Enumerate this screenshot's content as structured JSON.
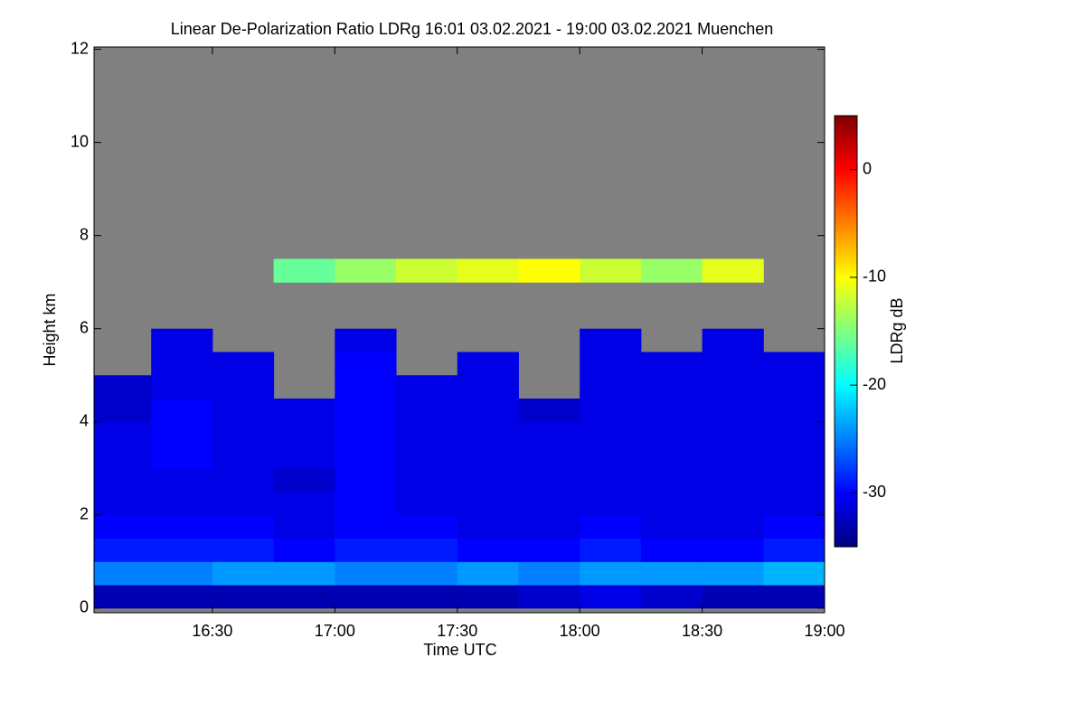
{
  "chart_data": {
    "type": "heatmap",
    "title": "Linear De-Polarization Ratio LDRg   16:01 03.02.2021 - 19:00 03.02.2021 Muenchen",
    "xlabel": "Time UTC",
    "ylabel": "Height km",
    "colorbar_label": "LDRg dB",
    "colormap": "jet",
    "missing_color": "#808080",
    "x_edges": [
      16.0167,
      16.25,
      16.5,
      16.75,
      17,
      17.25,
      17.5,
      17.75,
      18,
      18.25,
      18.5,
      18.75,
      19
    ],
    "y_edges": [
      0,
      0.5,
      1,
      1.5,
      2,
      2.5,
      3,
      3.5,
      4,
      4.5,
      5,
      5.5,
      6,
      6.5,
      7,
      7.5
    ],
    "z": [
      [
        -33,
        -33,
        -33,
        -33,
        -33,
        -33,
        -33,
        -32,
        -31,
        -32,
        -33,
        -33
      ],
      [
        -25,
        -25,
        -24,
        -24,
        -25,
        -25,
        -24,
        -25,
        -24,
        -24,
        -24,
        -23
      ],
      [
        -29,
        -29,
        -29,
        -30,
        -29,
        -29,
        -30,
        -30,
        -29,
        -30,
        -30,
        -29
      ],
      [
        -30,
        -30,
        -30,
        -31,
        -30,
        -30,
        -31,
        -31,
        -30,
        -31,
        -31,
        -30
      ],
      [
        -31,
        -31,
        -31,
        -31,
        -30,
        -31,
        -31,
        -31,
        -31,
        -31,
        -31,
        -31
      ],
      [
        -31,
        -31,
        -31,
        -32,
        -30,
        -31,
        -31,
        -31,
        -31,
        -31,
        -31,
        -31
      ],
      [
        -31,
        -30,
        -31,
        -31,
        -30,
        -31,
        -31,
        -31,
        -31,
        -31,
        -31,
        -31
      ],
      [
        -31,
        -30,
        -31,
        -31,
        -30,
        -31,
        -31,
        -31,
        -31,
        -31,
        -31,
        -31
      ],
      [
        -32,
        -30,
        -31,
        -31,
        -30,
        -31,
        -31,
        -32,
        -31,
        -31,
        -31,
        -31
      ],
      [
        -32,
        -31,
        -31,
        null,
        -30,
        -31,
        -31,
        null,
        -31,
        -31,
        -31,
        -31
      ],
      [
        null,
        -31,
        -31,
        null,
        -30,
        null,
        -31,
        null,
        -31,
        -31,
        -31,
        -31
      ],
      [
        null,
        -31,
        null,
        null,
        -31,
        null,
        null,
        null,
        -31,
        null,
        -31,
        null
      ],
      [
        null,
        null,
        null,
        null,
        null,
        null,
        null,
        null,
        null,
        null,
        null,
        null
      ],
      [
        null,
        null,
        null,
        null,
        null,
        null,
        null,
        null,
        null,
        null,
        null,
        null
      ],
      [
        null,
        null,
        null,
        -16,
        -14,
        -12,
        -11,
        -10,
        -12,
        -14,
        -11,
        null
      ]
    ],
    "xlim": [
      16.0167,
      19.0
    ],
    "ylim": [
      -0.1,
      12.05
    ],
    "clim": [
      -35,
      5
    ],
    "xticks": [
      {
        "value": 16.5,
        "label": "16:30"
      },
      {
        "value": 17,
        "label": "17:00"
      },
      {
        "value": 17.5,
        "label": "17:30"
      },
      {
        "value": 18,
        "label": "18:00"
      },
      {
        "value": 18.5,
        "label": "18:30"
      },
      {
        "value": 19,
        "label": "19:00"
      }
    ],
    "yticks": [
      0,
      2,
      4,
      6,
      8,
      10,
      12
    ],
    "cticks": [
      0,
      -10,
      -20,
      -30
    ]
  }
}
